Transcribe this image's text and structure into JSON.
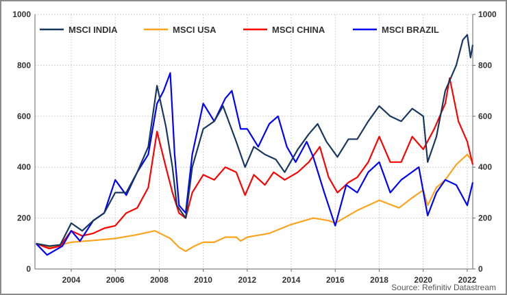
{
  "chart_data": {
    "type": "line",
    "title": "",
    "xlabel": "",
    "ylabel": "",
    "source": "Source: Refinitiv Datastream",
    "xlim": [
      2002.35,
      2022.25
    ],
    "ylim": [
      0,
      1000
    ],
    "x_ticks": [
      "2004",
      "2006",
      "2008",
      "2010",
      "2012",
      "2014",
      "2016",
      "2018",
      "2020",
      "2022"
    ],
    "y_ticks": [
      "0",
      "200",
      "400",
      "600",
      "800",
      "1000"
    ],
    "grid": true,
    "legend_position": "top",
    "series": [
      {
        "name": "MSCI INDIA",
        "color": "#17375e",
        "points": [
          [
            2002.4,
            100
          ],
          [
            2003,
            90
          ],
          [
            2003.5,
            95
          ],
          [
            2004,
            180
          ],
          [
            2004.5,
            150
          ],
          [
            2005,
            190
          ],
          [
            2005.5,
            220
          ],
          [
            2006,
            300
          ],
          [
            2006.5,
            300
          ],
          [
            2007,
            380
          ],
          [
            2007.5,
            480
          ],
          [
            2007.9,
            720
          ],
          [
            2008.3,
            560
          ],
          [
            2008.6,
            400
          ],
          [
            2008.8,
            250
          ],
          [
            2009.2,
            200
          ],
          [
            2009.5,
            400
          ],
          [
            2010,
            550
          ],
          [
            2010.5,
            580
          ],
          [
            2010.9,
            640
          ],
          [
            2011.5,
            500
          ],
          [
            2011.9,
            400
          ],
          [
            2012.3,
            480
          ],
          [
            2012.8,
            450
          ],
          [
            2013.3,
            430
          ],
          [
            2013.7,
            380
          ],
          [
            2014.3,
            470
          ],
          [
            2014.8,
            530
          ],
          [
            2015.2,
            570
          ],
          [
            2015.6,
            500
          ],
          [
            2016.1,
            440
          ],
          [
            2016.6,
            510
          ],
          [
            2017,
            510
          ],
          [
            2017.5,
            580
          ],
          [
            2018,
            640
          ],
          [
            2018.5,
            600
          ],
          [
            2019,
            580
          ],
          [
            2019.5,
            630
          ],
          [
            2020,
            600
          ],
          [
            2020.2,
            420
          ],
          [
            2020.6,
            520
          ],
          [
            2021,
            700
          ],
          [
            2021.5,
            800
          ],
          [
            2021.8,
            900
          ],
          [
            2022,
            920
          ],
          [
            2022.15,
            830
          ],
          [
            2022.25,
            880
          ]
        ]
      },
      {
        "name": "MSCI USA",
        "color": "#ffa31a",
        "points": [
          [
            2002.4,
            100
          ],
          [
            2003,
            85
          ],
          [
            2003.5,
            95
          ],
          [
            2004,
            105
          ],
          [
            2005,
            112
          ],
          [
            2006,
            120
          ],
          [
            2007,
            135
          ],
          [
            2007.8,
            150
          ],
          [
            2008.5,
            120
          ],
          [
            2008.9,
            85
          ],
          [
            2009.2,
            70
          ],
          [
            2009.6,
            90
          ],
          [
            2010,
            105
          ],
          [
            2010.5,
            105
          ],
          [
            2011,
            125
          ],
          [
            2011.5,
            125
          ],
          [
            2011.7,
            110
          ],
          [
            2012,
            125
          ],
          [
            2013,
            140
          ],
          [
            2014,
            175
          ],
          [
            2015,
            200
          ],
          [
            2015.7,
            190
          ],
          [
            2016,
            180
          ],
          [
            2016.5,
            205
          ],
          [
            2017,
            230
          ],
          [
            2018,
            270
          ],
          [
            2018.9,
            240
          ],
          [
            2019.5,
            280
          ],
          [
            2020,
            310
          ],
          [
            2020.2,
            250
          ],
          [
            2020.6,
            320
          ],
          [
            2021,
            350
          ],
          [
            2021.5,
            410
          ],
          [
            2022,
            450
          ],
          [
            2022.25,
            420
          ]
        ]
      },
      {
        "name": "MSCI CHINA",
        "color": "#ff0000",
        "points": [
          [
            2002.4,
            100
          ],
          [
            2003,
            80
          ],
          [
            2003.5,
            90
          ],
          [
            2004,
            150
          ],
          [
            2004.5,
            130
          ],
          [
            2005,
            140
          ],
          [
            2005.5,
            160
          ],
          [
            2006,
            170
          ],
          [
            2006.5,
            220
          ],
          [
            2007,
            240
          ],
          [
            2007.5,
            320
          ],
          [
            2007.9,
            540
          ],
          [
            2008.3,
            400
          ],
          [
            2008.6,
            300
          ],
          [
            2008.9,
            220
          ],
          [
            2009.2,
            200
          ],
          [
            2009.5,
            300
          ],
          [
            2010,
            370
          ],
          [
            2010.5,
            350
          ],
          [
            2011,
            400
          ],
          [
            2011.5,
            380
          ],
          [
            2011.9,
            290
          ],
          [
            2012.3,
            370
          ],
          [
            2012.8,
            330
          ],
          [
            2013.2,
            380
          ],
          [
            2013.7,
            350
          ],
          [
            2014.3,
            380
          ],
          [
            2014.8,
            420
          ],
          [
            2015.3,
            480
          ],
          [
            2015.7,
            360
          ],
          [
            2016.1,
            300
          ],
          [
            2016.6,
            340
          ],
          [
            2017,
            360
          ],
          [
            2017.5,
            420
          ],
          [
            2018,
            520
          ],
          [
            2018.5,
            420
          ],
          [
            2019,
            420
          ],
          [
            2019.5,
            520
          ],
          [
            2020,
            470
          ],
          [
            2020.5,
            550
          ],
          [
            2021,
            650
          ],
          [
            2021.2,
            750
          ],
          [
            2021.6,
            580
          ],
          [
            2022,
            500
          ],
          [
            2022.25,
            410
          ]
        ]
      },
      {
        "name": "MSCI BRAZIL",
        "color": "#0000ff",
        "points": [
          [
            2002.4,
            100
          ],
          [
            2002.9,
            55
          ],
          [
            2003.3,
            75
          ],
          [
            2003.6,
            90
          ],
          [
            2004,
            150
          ],
          [
            2004.4,
            110
          ],
          [
            2005,
            190
          ],
          [
            2005.5,
            220
          ],
          [
            2006,
            350
          ],
          [
            2006.5,
            290
          ],
          [
            2007,
            380
          ],
          [
            2007.5,
            450
          ],
          [
            2007.9,
            650
          ],
          [
            2008.2,
            700
          ],
          [
            2008.5,
            770
          ],
          [
            2008.7,
            450
          ],
          [
            2008.9,
            250
          ],
          [
            2009.2,
            220
          ],
          [
            2009.5,
            450
          ],
          [
            2010,
            650
          ],
          [
            2010.5,
            580
          ],
          [
            2011,
            670
          ],
          [
            2011.3,
            700
          ],
          [
            2011.7,
            550
          ],
          [
            2012,
            550
          ],
          [
            2012.5,
            480
          ],
          [
            2013,
            570
          ],
          [
            2013.4,
            600
          ],
          [
            2013.8,
            480
          ],
          [
            2014.2,
            420
          ],
          [
            2014.7,
            500
          ],
          [
            2015,
            440
          ],
          [
            2015.5,
            300
          ],
          [
            2016,
            170
          ],
          [
            2016.5,
            330
          ],
          [
            2017,
            300
          ],
          [
            2017.5,
            380
          ],
          [
            2018,
            420
          ],
          [
            2018.5,
            300
          ],
          [
            2019,
            350
          ],
          [
            2019.8,
            400
          ],
          [
            2020.2,
            210
          ],
          [
            2020.6,
            300
          ],
          [
            2021,
            350
          ],
          [
            2021.5,
            330
          ],
          [
            2022,
            250
          ],
          [
            2022.25,
            340
          ]
        ]
      }
    ]
  }
}
